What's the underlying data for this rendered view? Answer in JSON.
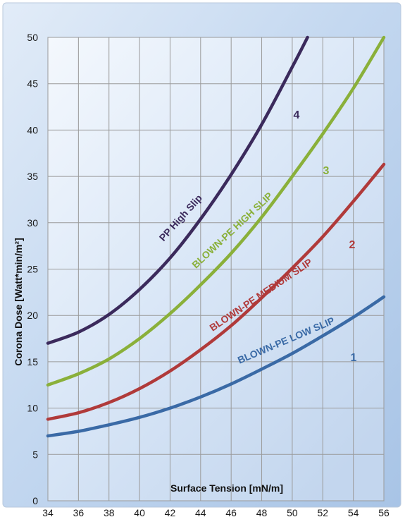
{
  "chart_data": {
    "type": "line",
    "xlabel": "Surface Tension [mN/m]",
    "ylabel": "Corona Dose  [Watt*min/m²]",
    "xlim": [
      34,
      56
    ],
    "ylim": [
      0,
      50
    ],
    "x_ticks": [
      34,
      36,
      38,
      40,
      42,
      44,
      46,
      48,
      50,
      52,
      54,
      56
    ],
    "y_ticks": [
      0,
      5,
      10,
      15,
      20,
      25,
      30,
      35,
      40,
      45,
      50
    ],
    "grid": true,
    "legend": "none",
    "series": [
      {
        "name": "BLOWN-PE LOW SLIP",
        "number": "1",
        "color": "#3a6aa6",
        "x": [
          34,
          36,
          38,
          40,
          42,
          44,
          46,
          48,
          50,
          52,
          54,
          56
        ],
        "y": [
          7.0,
          7.5,
          8.2,
          9.0,
          10.0,
          11.2,
          12.6,
          14.2,
          15.9,
          17.8,
          19.8,
          22.0
        ]
      },
      {
        "name": "BLOWN-PE MEDIUM SLIP",
        "number": "2",
        "color": "#b03a3a",
        "x": [
          34,
          36,
          38,
          40,
          42,
          44,
          46,
          48,
          50,
          52,
          54,
          56
        ],
        "y": [
          8.8,
          9.5,
          10.6,
          12.1,
          14.0,
          16.3,
          18.9,
          21.9,
          25.1,
          28.5,
          32.3,
          36.3
        ]
      },
      {
        "name": "BLOWN-PE HIGH SLIP",
        "number": "3",
        "color": "#8ab03a",
        "x": [
          34,
          36,
          38,
          40,
          42,
          44,
          46,
          48,
          50,
          52,
          54,
          56
        ],
        "y": [
          12.5,
          13.7,
          15.3,
          17.5,
          20.2,
          23.3,
          26.7,
          30.6,
          35.0,
          39.6,
          44.5,
          50.0
        ]
      },
      {
        "name": "PP  High Slip",
        "number": "4",
        "color": "#3b2a5c",
        "x": [
          34,
          36,
          38,
          40,
          42,
          44,
          46,
          48,
          50,
          51
        ],
        "y": [
          17.0,
          18.2,
          20.1,
          22.8,
          26.2,
          30.4,
          35.2,
          40.6,
          46.8,
          50.0
        ]
      }
    ]
  }
}
